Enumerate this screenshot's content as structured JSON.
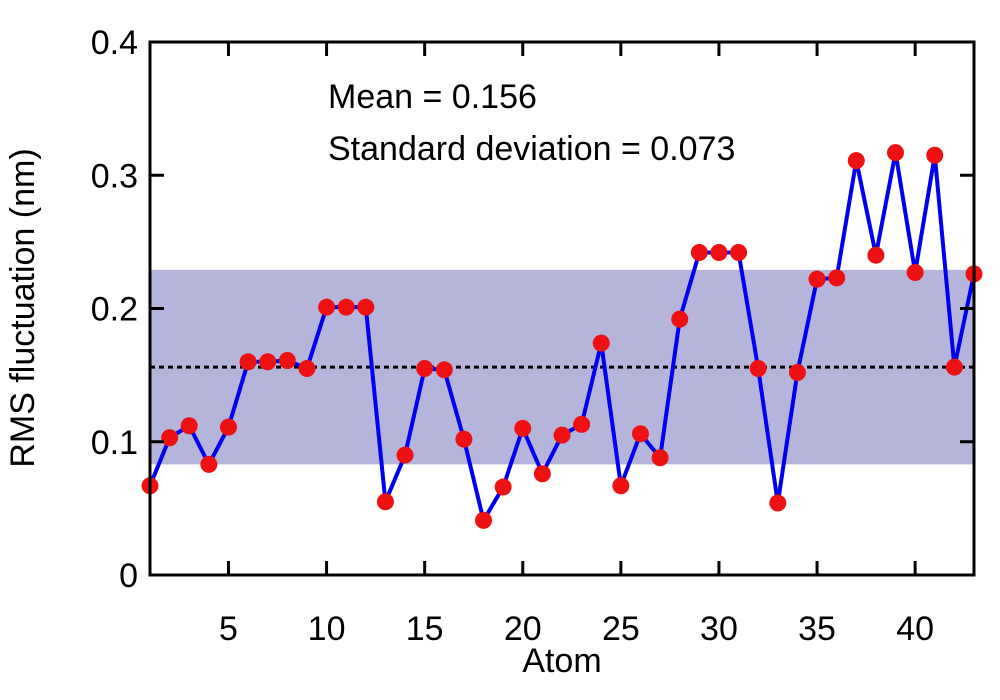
{
  "chart_data": {
    "type": "line",
    "xlabel": "Atom",
    "ylabel": "RMS fluctuation (nm)",
    "xlim": [
      1,
      43
    ],
    "ylim": [
      0,
      0.4
    ],
    "xticks": [
      5,
      10,
      15,
      20,
      25,
      30,
      35,
      40
    ],
    "yticks": [
      0,
      0.1,
      0.2,
      0.3,
      0.4
    ],
    "ytick_labels": [
      "0",
      "0.1",
      "0.2",
      "0.3",
      "0.4"
    ],
    "grid": false,
    "x": [
      1,
      2,
      3,
      4,
      5,
      6,
      7,
      8,
      9,
      10,
      11,
      12,
      13,
      14,
      15,
      16,
      17,
      18,
      19,
      20,
      21,
      22,
      23,
      24,
      25,
      26,
      27,
      28,
      29,
      30,
      31,
      32,
      33,
      34,
      35,
      36,
      37,
      38,
      39,
      40,
      41,
      42,
      43
    ],
    "values": [
      0.067,
      0.103,
      0.112,
      0.083,
      0.111,
      0.16,
      0.16,
      0.161,
      0.155,
      0.201,
      0.201,
      0.201,
      0.055,
      0.09,
      0.155,
      0.154,
      0.102,
      0.041,
      0.066,
      0.11,
      0.076,
      0.105,
      0.113,
      0.174,
      0.067,
      0.106,
      0.088,
      0.192,
      0.242,
      0.242,
      0.242,
      0.155,
      0.054,
      0.152,
      0.222,
      0.223,
      0.311,
      0.24,
      0.317,
      0.227,
      0.315,
      0.156,
      0.226
    ],
    "line_color": "#0000ee",
    "marker_color": "#ee1111",
    "band": {
      "low": 0.083,
      "high": 0.229,
      "color": "#b5b5dc"
    },
    "mean_line": 0.156,
    "annotations": [
      "Mean = 0.156",
      "Standard deviation = 0.073"
    ]
  }
}
